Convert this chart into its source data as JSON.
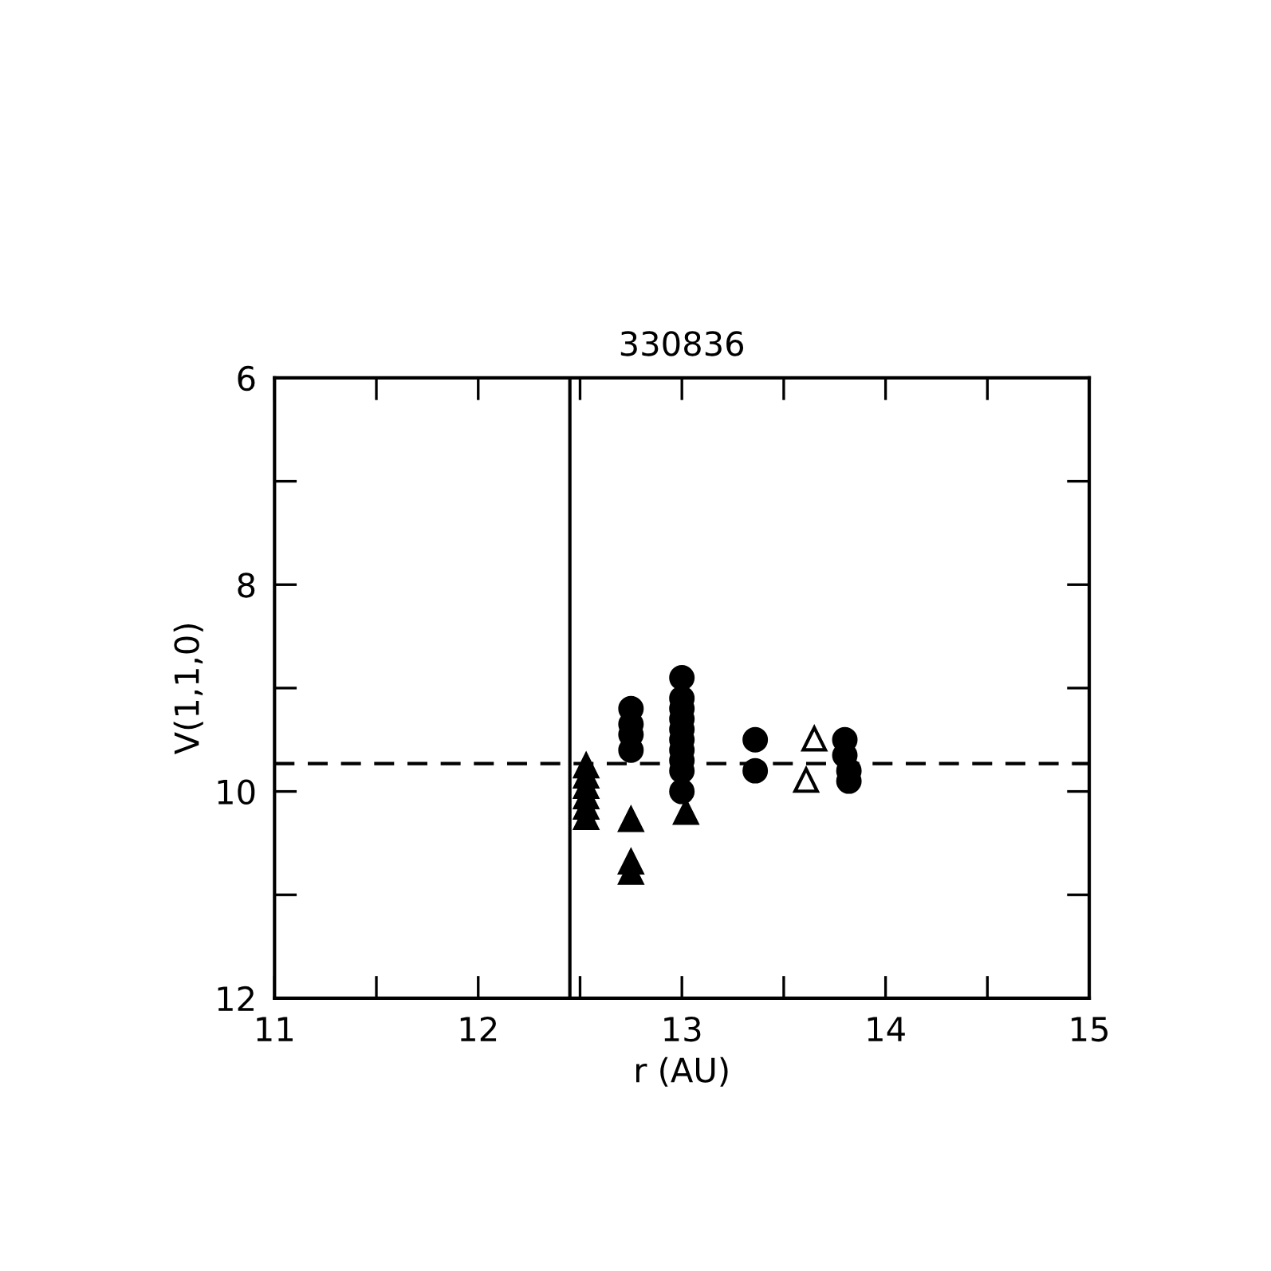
{
  "chart_data": {
    "type": "scatter",
    "title": "330836",
    "xlabel": "r (AU)",
    "ylabel": "V(1,1,0)",
    "xlim": [
      11,
      15
    ],
    "xticks": [
      11,
      {
        "value": 11.5,
        "label": null
      },
      12,
      {
        "value": 12.5,
        "label": null
      },
      13,
      {
        "value": 13.5,
        "label": null
      },
      14,
      {
        "value": 14.5,
        "label": null
      },
      15
    ],
    "ylim": [
      12,
      6
    ],
    "yticks": [
      6,
      {
        "value": 7,
        "label": null
      },
      8,
      {
        "value": 9,
        "label": null
      },
      10,
      {
        "value": 11,
        "label": null
      },
      12
    ],
    "grid": false,
    "legend": false,
    "ref_lines": [
      {
        "axis": "x",
        "value": 12.45,
        "color": "#000000",
        "line_style": "solid"
      },
      {
        "axis": "y",
        "value": 9.73,
        "color": "#000000",
        "line_style": "dashed"
      }
    ],
    "series": [
      {
        "marker": "circle",
        "color": "#000000",
        "x": [
          12.75,
          12.75,
          12.75,
          12.75,
          13.0,
          13.0,
          13.0,
          13.0,
          13.0,
          13.0,
          13.0,
          13.0,
          13.0,
          13.0,
          13.36,
          13.36,
          13.8,
          13.8,
          13.82,
          13.82
        ],
        "values": [
          9.2,
          9.35,
          9.45,
          9.6,
          8.9,
          9.1,
          9.2,
          9.3,
          9.4,
          9.5,
          9.6,
          9.7,
          9.8,
          10.0,
          9.5,
          9.8,
          9.5,
          9.65,
          9.8,
          9.9
        ]
      },
      {
        "marker": "triangle",
        "color": "#000000",
        "x": [
          12.53,
          12.53,
          12.53,
          12.53,
          12.53,
          12.53,
          12.75,
          12.75,
          12.75,
          13.02
        ],
        "values": [
          9.75,
          9.85,
          9.95,
          10.05,
          10.15,
          10.25,
          10.27,
          10.68,
          10.78,
          10.2
        ]
      },
      {
        "marker": "triangle",
        "color": "#ffffff",
        "x": [
          13.65,
          13.61
        ],
        "values": [
          9.49,
          9.89
        ]
      }
    ]
  }
}
